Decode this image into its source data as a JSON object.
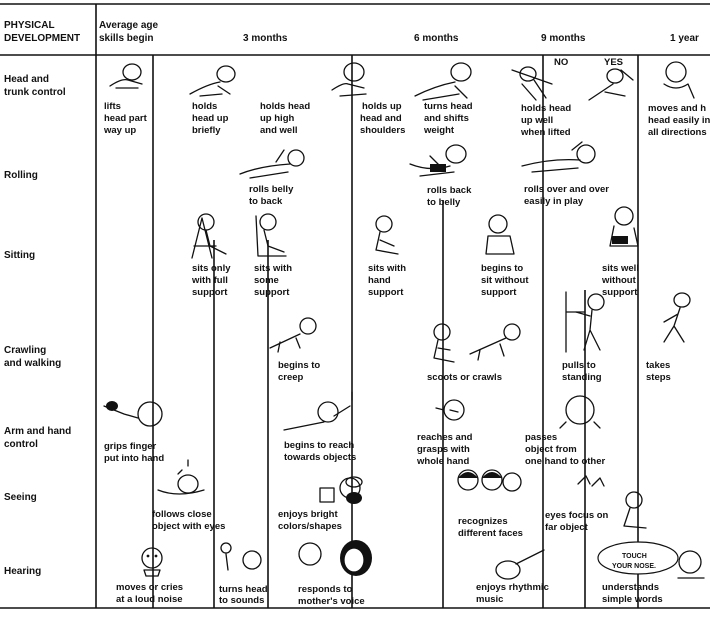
{
  "header": {
    "corner_line1": "PHYSICAL",
    "corner_line2": "DEVELOPMENT",
    "avg_line1": "Average age",
    "avg_line2": "skills begin",
    "months_3": "3 months",
    "months_6": "6 months",
    "months_9": "9 months",
    "year_1": "1 year"
  },
  "rows": {
    "head_trunk_line1": "Head and",
    "head_trunk_line2": "trunk control",
    "rolling": "Rolling",
    "sitting": "Sitting",
    "crawling_line1": "Crawling",
    "crawling_line2": "and walking",
    "arm_hand_line1": "Arm and hand",
    "arm_hand_line2": "control",
    "seeing": "Seeing",
    "hearing": "Hearing"
  },
  "captions": {
    "lifts_head": [
      "lifts",
      "head part",
      "way up"
    ],
    "holds_head_briefly": [
      "holds",
      "head up",
      "briefly"
    ],
    "holds_head_high": [
      "holds head",
      "up high",
      "and well"
    ],
    "holds_head_shoulders": [
      "holds up",
      "head and",
      "shoulders"
    ],
    "turns_head_weight": [
      "turns head",
      "and shifts",
      "weight"
    ],
    "holds_head_lifted": [
      "holds head",
      "up well",
      "when lifted"
    ],
    "moves_head": [
      "moves and h",
      "head easily in",
      "all directions"
    ],
    "rolls_belly_back": [
      "rolls belly",
      "to back"
    ],
    "rolls_back_belly": [
      "rolls back",
      "to belly"
    ],
    "rolls_over_play": [
      "rolls over and over",
      "easily in play"
    ],
    "sits_full_support": [
      "sits only",
      "with full",
      "support"
    ],
    "sits_some_support": [
      "sits with",
      "some",
      "support"
    ],
    "sits_hand_support": [
      "sits with",
      "hand",
      "support"
    ],
    "sits_without_support": [
      "begins to",
      "sit without",
      "support"
    ],
    "sits_well": [
      "sits well",
      "without",
      "support"
    ],
    "begins_creep": [
      "begins to",
      "creep"
    ],
    "scoots_crawls": [
      "scoots or crawls"
    ],
    "pulls_standing": [
      "pulls to",
      "standing"
    ],
    "takes_steps": [
      "takes",
      "steps"
    ],
    "grips_finger": [
      "grips finger",
      "put into hand"
    ],
    "reach_objects": [
      "begins to reach",
      "towards objects"
    ],
    "reaches_grasps": [
      "reaches and",
      "grasps with",
      "whole hand"
    ],
    "passes_object": [
      "passes",
      "object from",
      "one hand to other"
    ],
    "follows_object": [
      "follows close",
      "object with eyes"
    ],
    "bright_colors": [
      "enjoys bright",
      "colors/shapes"
    ],
    "recognizes_faces": [
      "recognizes",
      "different faces"
    ],
    "eyes_focus": [
      "eyes focus on",
      "far object"
    ],
    "moves_cries": [
      "moves or cries",
      "at a loud noise"
    ],
    "turns_sounds": [
      "turns head",
      "to sounds"
    ],
    "responds_voice": [
      "responds to",
      "mother's voice"
    ],
    "rhythmic_music": [
      "enjoys rhythmic",
      "music"
    ],
    "simple_words": [
      "understands",
      "simple words"
    ]
  },
  "illustration_text": {
    "no": "NO",
    "yes": "YES",
    "speech_line1": "TOUCH",
    "speech_line2": "YOUR  NOSE."
  },
  "icons": [
    "baby-figure-icon",
    "mother-figure-icon",
    "rattle-icon",
    "ball-icon",
    "block-icon",
    "guitar-icon",
    "speech-bubble-icon"
  ]
}
